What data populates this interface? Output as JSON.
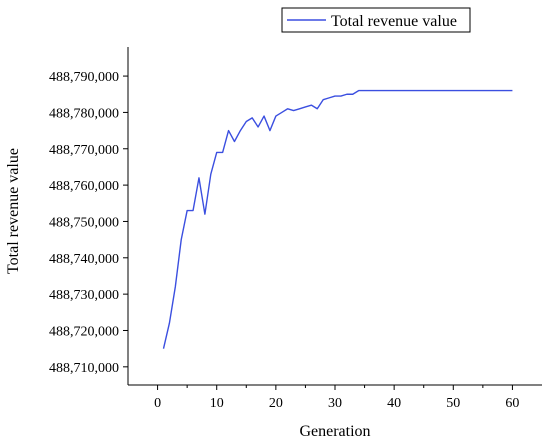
{
  "chart_data": {
    "type": "line",
    "xlabel": "Generation",
    "ylabel": "Total revenue value",
    "xlim": [
      -5,
      65
    ],
    "ylim": [
      488705000,
      488798000
    ],
    "x_ticks": [
      0,
      10,
      20,
      30,
      40,
      50,
      60
    ],
    "y_ticks": [
      488710000,
      488720000,
      488730000,
      488740000,
      488750000,
      488760000,
      488770000,
      488780000,
      488790000
    ],
    "x_tick_labels": [
      "0",
      "10",
      "20",
      "30",
      "40",
      "50",
      "60"
    ],
    "y_tick_labels": [
      "488,710,000",
      "488,720,000",
      "488,730,000",
      "488,740,000",
      "488,750,000",
      "488,760,000",
      "488,770,000",
      "488,780,000",
      "488,790,000"
    ],
    "grid": false,
    "legend_position": "top-right",
    "series": [
      {
        "name": "Total revenue value",
        "color": "#3b4fe0",
        "x": [
          1,
          2,
          3,
          4,
          5,
          6,
          7,
          8,
          9,
          10,
          11,
          12,
          13,
          14,
          15,
          16,
          17,
          18,
          19,
          20,
          21,
          22,
          23,
          24,
          25,
          26,
          27,
          28,
          29,
          30,
          31,
          32,
          33,
          34,
          35,
          36,
          37,
          38,
          39,
          40,
          41,
          42,
          43,
          44,
          45,
          46,
          47,
          48,
          49,
          50,
          51,
          52,
          53,
          54,
          55,
          56,
          57,
          58,
          59,
          60
        ],
        "values": [
          488715000,
          488722000,
          488732000,
          488745000,
          488753000,
          488753000,
          488762000,
          488752000,
          488763000,
          488769000,
          488769000,
          488775000,
          488772000,
          488775000,
          488777500,
          488778500,
          488776000,
          488779000,
          488775000,
          488779000,
          488780000,
          488781000,
          488780500,
          488781000,
          488781500,
          488782000,
          488781000,
          488783500,
          488784000,
          488784500,
          488784500,
          488785000,
          488785000,
          488786000,
          488786000,
          488786000,
          488786000,
          488786000,
          488786000,
          488786000,
          488786000,
          488786000,
          488786000,
          488786000,
          488786000,
          488786000,
          488786000,
          488786000,
          488786000,
          488786000,
          488786000,
          488786000,
          488786000,
          488786000,
          488786000,
          488786000,
          488786000,
          488786000,
          488786000,
          488786000
        ]
      }
    ]
  }
}
